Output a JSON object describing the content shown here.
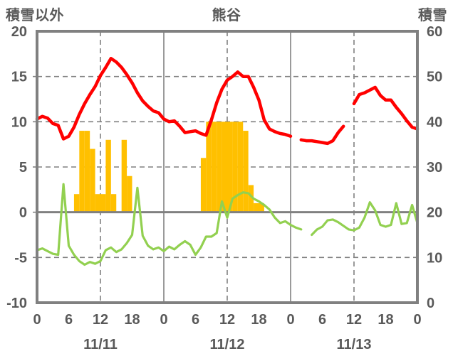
{
  "header": {
    "left_axis_label": "積雪以外",
    "title": "熊谷",
    "right_axis_label": "積雪"
  },
  "chart_data": {
    "type": "line+bar",
    "title": "熊谷",
    "hours_total": 72,
    "days": [
      "11/11",
      "11/12",
      "11/13"
    ],
    "hour_ticks": [
      0,
      6,
      12,
      18
    ],
    "last_hour_tick_label": "0",
    "left_axis": {
      "label": "積雪以外",
      "min": -10,
      "max": 20,
      "step": 5,
      "ticks": [
        20,
        15,
        10,
        5,
        0,
        -5,
        -10
      ]
    },
    "right_axis": {
      "label": "積雪",
      "min": 0,
      "max": 60,
      "step": 10,
      "ticks": [
        60,
        50,
        40,
        30,
        20,
        10,
        0
      ]
    },
    "grid": {
      "dashed_h_values": [
        15,
        10,
        5,
        -5
      ],
      "zero_line_value": 0,
      "dashed_v_hours": [
        12,
        36,
        60
      ],
      "solid_v_hours": [
        24,
        48
      ]
    },
    "colors": {
      "red_line": "#FF0000",
      "green_line": "#92D050",
      "bars": "#FFC000",
      "grid": "#808080",
      "text": "#595959",
      "background": "#FFFFFF"
    },
    "series": [
      {
        "name": "red-line",
        "type": "line",
        "color_key": "red_line",
        "width": 4.5,
        "values": [
          10.3,
          10.6,
          10.4,
          9.8,
          9.6,
          8.1,
          8.4,
          9.4,
          10.8,
          12.0,
          13.0,
          13.9,
          15.1,
          16.0,
          17.0,
          16.6,
          16.0,
          15.2,
          14.3,
          13.2,
          12.3,
          11.7,
          11.2,
          11.0,
          10.3,
          10.0,
          10.1,
          9.5,
          8.8,
          8.9,
          9.0,
          8.7,
          8.5,
          10.2,
          12.1,
          13.6,
          14.6,
          15.0,
          15.5,
          15.0,
          15.0,
          13.8,
          12.4,
          10.2,
          9.2,
          8.9,
          8.7,
          8.6,
          8.4,
          null,
          8.0,
          7.9,
          7.9,
          7.8,
          7.7,
          7.6,
          7.9,
          8.8,
          9.5,
          null,
          12.0,
          13.0,
          13.2,
          13.5,
          13.8,
          12.9,
          12.4,
          12.4,
          11.6,
          10.9,
          10.1,
          9.4,
          9.2
        ]
      },
      {
        "name": "green-line",
        "type": "line",
        "color_key": "green_line",
        "width": 3.2,
        "values": [
          -4.2,
          -4.0,
          -4.3,
          -4.6,
          -4.7,
          3.1,
          -3.7,
          -4.7,
          -5.4,
          -5.8,
          -5.5,
          -5.7,
          -5.4,
          -4.2,
          -3.9,
          -4.4,
          -4.1,
          -3.4,
          -2.5,
          2.7,
          -2.6,
          -3.7,
          -4.1,
          -3.9,
          -4.3,
          -3.8,
          -4.1,
          -3.6,
          -3.2,
          -3.6,
          -4.7,
          -3.9,
          -2.7,
          -2.7,
          -2.3,
          1.2,
          -0.6,
          1.5,
          1.9,
          2.2,
          2.1,
          1.5,
          1.2,
          0.8,
          0.3,
          -0.6,
          -1.2,
          -1.0,
          -1.4,
          -1.7,
          -1.9,
          null,
          -2.5,
          -1.9,
          -1.6,
          -0.9,
          -0.8,
          -1.1,
          -1.5,
          -1.9,
          -2.0,
          -1.7,
          -0.6,
          1.1,
          0.2,
          -1.4,
          -1.6,
          -1.4,
          1.0,
          -1.3,
          -1.2,
          0.8,
          -1.2
        ]
      },
      {
        "name": "orange-bars",
        "type": "bar",
        "color_key": "bars",
        "points": [
          [
            8,
            2
          ],
          [
            9,
            9
          ],
          [
            10,
            9
          ],
          [
            11,
            7
          ],
          [
            12,
            2
          ],
          [
            13,
            2
          ],
          [
            14,
            8
          ],
          [
            15,
            2
          ],
          [
            17,
            8
          ],
          [
            18,
            4
          ],
          [
            32,
            6
          ],
          [
            33,
            10
          ],
          [
            34,
            10
          ],
          [
            35,
            10
          ],
          [
            36,
            10
          ],
          [
            37,
            10
          ],
          [
            38,
            10
          ],
          [
            39,
            10
          ],
          [
            40,
            9
          ],
          [
            41,
            3
          ],
          [
            42,
            1
          ],
          [
            43,
            1
          ]
        ]
      }
    ]
  }
}
